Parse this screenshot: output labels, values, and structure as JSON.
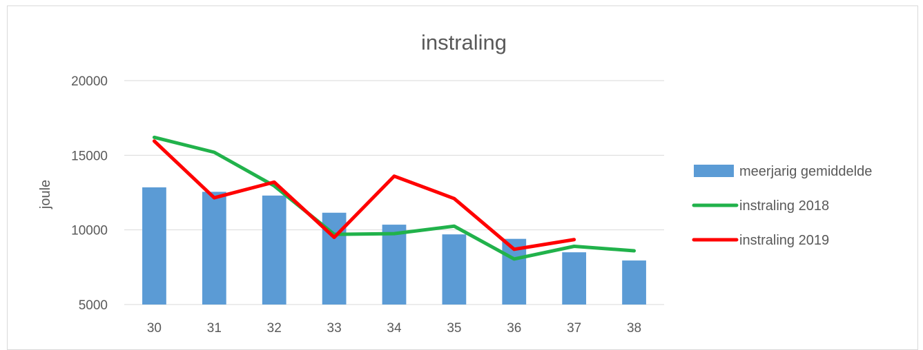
{
  "chart_data": {
    "type": "bar",
    "title": "instraling",
    "xlabel": "",
    "ylabel": "joule",
    "categories": [
      "30",
      "31",
      "32",
      "33",
      "34",
      "35",
      "36",
      "37",
      "38"
    ],
    "ylim": [
      5000,
      20000
    ],
    "yticks": [
      5000,
      10000,
      15000,
      20000
    ],
    "grid": true,
    "legend_position": "right",
    "series": [
      {
        "name": "meerjarig gemiddelde",
        "kind": "bar",
        "color": "#5b9bd5",
        "values": [
          12850,
          12550,
          12300,
          11150,
          10350,
          9700,
          9400,
          8500,
          7950
        ]
      },
      {
        "name": "instraling 2018",
        "kind": "line",
        "color": "#21b24b",
        "values": [
          16200,
          15200,
          12950,
          9700,
          9750,
          10250,
          8050,
          8900,
          8600
        ]
      },
      {
        "name": "instraling 2019",
        "kind": "line",
        "color": "#ff0000",
        "values": [
          15950,
          12150,
          13200,
          9500,
          13600,
          12100,
          8700,
          9350,
          null
        ]
      }
    ]
  }
}
